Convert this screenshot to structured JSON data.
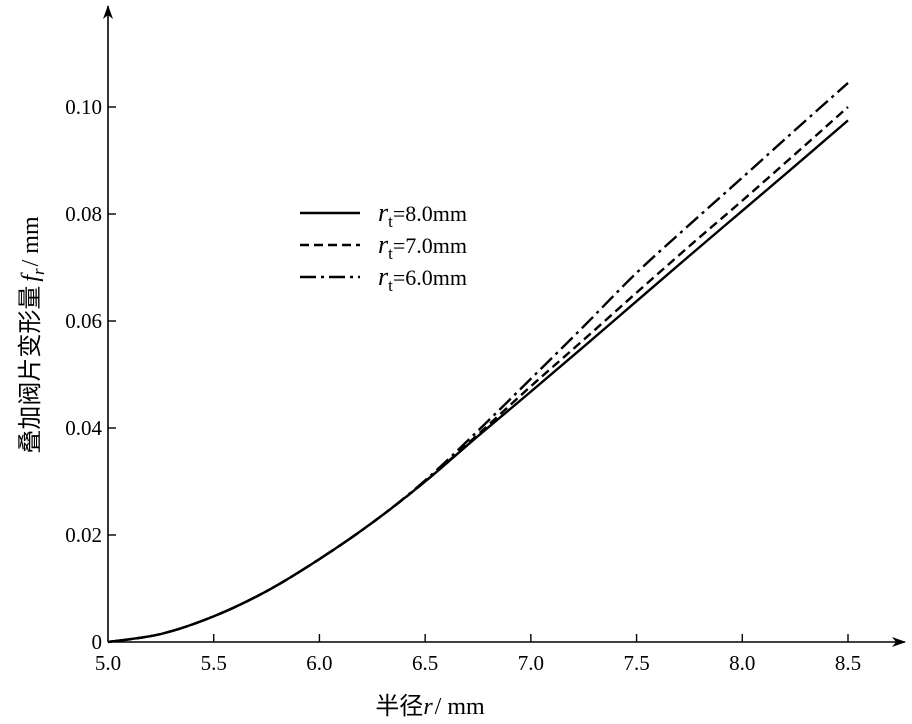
{
  "chart_data": {
    "type": "line",
    "xlabel_prefix": "半径",
    "xlabel_var": "r",
    "xlabel_unit": "/ mm",
    "ylabel_prefix": "叠加阀片变形量",
    "ylabel_var": "f",
    "ylabel_sub": "r",
    "ylabel_unit": "/ mm",
    "xlim": [
      5.0,
      8.5
    ],
    "ylim": [
      0,
      0.1
    ],
    "x_ticks": [
      "5.0",
      "5.5",
      "6.0",
      "6.5",
      "7.0",
      "7.5",
      "8.0",
      "8.5"
    ],
    "y_ticks": [
      "0",
      "0.02",
      "0.04",
      "0.06",
      "0.08",
      "0.10"
    ],
    "grid": false,
    "legend_position": "upper-left",
    "x": [
      5.0,
      5.25,
      5.5,
      5.75,
      6.0,
      6.25,
      6.5,
      6.75,
      7.0,
      7.25,
      7.5,
      7.75,
      8.0,
      8.25,
      8.5
    ],
    "series": [
      {
        "name_var": "r",
        "name_sub": "t",
        "name_value": "=8.0mm",
        "style": "solid",
        "values": [
          0.0,
          0.0015,
          0.0048,
          0.0095,
          0.0155,
          0.0223,
          0.03,
          0.0385,
          0.0468,
          0.0552,
          0.0637,
          0.0722,
          0.0806,
          0.089,
          0.0975
        ]
      },
      {
        "name_var": "r",
        "name_sub": "t",
        "name_value": "=7.0mm",
        "style": "dashed",
        "values": [
          0.0,
          0.0015,
          0.0048,
          0.0095,
          0.0155,
          0.0223,
          0.03,
          0.0388,
          0.0478,
          0.0565,
          0.0653,
          0.074,
          0.0825,
          0.0912,
          0.1
        ]
      },
      {
        "name_var": "r",
        "name_sub": "t",
        "name_value": "=6.0mm",
        "style": "dashdot",
        "values": [
          0.0,
          0.0015,
          0.0048,
          0.0095,
          0.0155,
          0.0223,
          0.0302,
          0.0395,
          0.0492,
          0.059,
          0.069,
          0.078,
          0.0868,
          0.0957,
          0.1045
        ]
      }
    ]
  }
}
